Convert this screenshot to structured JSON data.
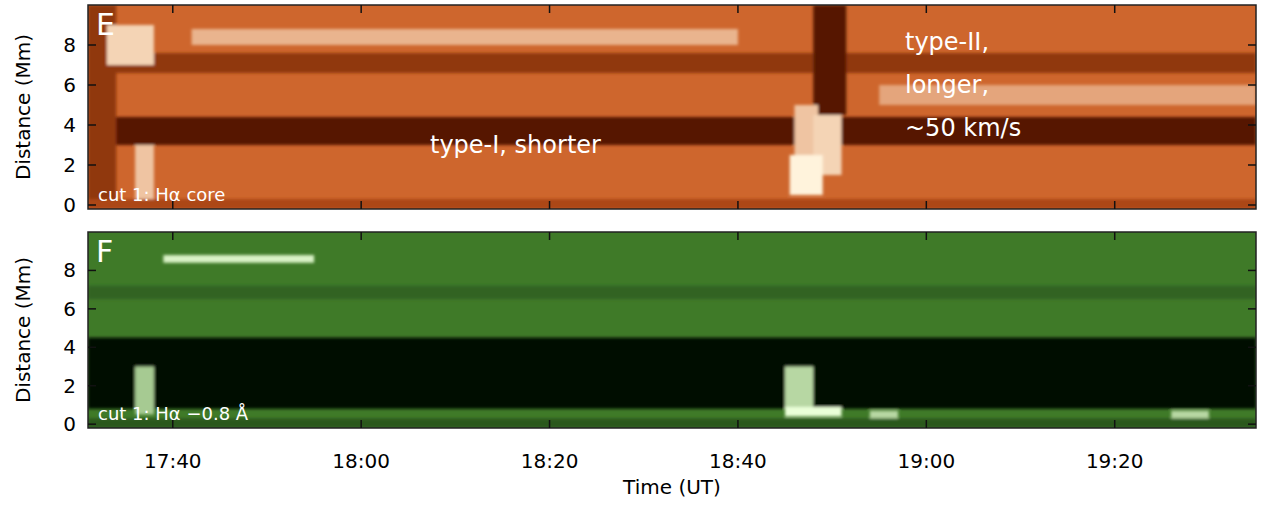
{
  "chart_data": [
    {
      "type": "time-distance",
      "panel": "E",
      "ylabel": "Distance (Mm)",
      "cut_label": "cut 1: Hα core",
      "annotations": [
        "type-I, shorter",
        "type-II, longer, ~50 km/s"
      ],
      "xlim": [
        1051,
        1175
      ],
      "ylim": [
        -0.2,
        10
      ],
      "xticks": [
        {
          "value": 1060,
          "label": "17:40"
        },
        {
          "value": 1080,
          "label": "18:00"
        },
        {
          "value": 1100,
          "label": "18:20"
        },
        {
          "value": 1120,
          "label": "18:40"
        },
        {
          "value": 1140,
          "label": "19:00"
        },
        {
          "value": 1160,
          "label": "19:20"
        }
      ],
      "yticks": [
        0,
        2,
        4,
        6,
        8
      ],
      "tick_labels": "y",
      "colors": [
        "#3a0800",
        "#c9561a",
        "#fff3dc"
      ],
      "background": 0.55,
      "features": [
        {
          "t0": 1051,
          "t1": 1175,
          "d0": 6.6,
          "d1": 7.6,
          "level": 0.3
        },
        {
          "t0": 1051,
          "t1": 1175,
          "d0": 3.0,
          "d1": 4.4,
          "level": 0.1
        },
        {
          "t0": 1062,
          "t1": 1120,
          "d0": 8.0,
          "d1": 8.8,
          "level": 0.8
        },
        {
          "t0": 1135,
          "t1": 1175,
          "d0": 5.0,
          "d1": 6.0,
          "level": 0.75
        },
        {
          "t0": 1051,
          "t1": 1054,
          "d0": 0.0,
          "d1": 10.0,
          "level": 0.3
        },
        {
          "t0": 1053,
          "t1": 1058,
          "d0": 7.0,
          "d1": 9.0,
          "level": 0.9
        },
        {
          "t0": 1056,
          "t1": 1058,
          "d0": 0.2,
          "d1": 3.0,
          "level": 0.85
        },
        {
          "t0": 1051,
          "t1": 1175,
          "d0": -0.2,
          "d1": 0.3,
          "level": 0.4
        },
        {
          "t0": 1128,
          "t1": 1131.5,
          "d0": 4.5,
          "d1": 10.0,
          "level": 0.1
        },
        {
          "t0": 1126,
          "t1": 1128.5,
          "d0": 2.5,
          "d1": 5.0,
          "level": 0.85
        },
        {
          "t0": 1128,
          "t1": 1131,
          "d0": 1.5,
          "d1": 4.5,
          "level": 0.9
        },
        {
          "t0": 1125.5,
          "t1": 1129,
          "d0": 0.5,
          "d1": 2.5,
          "level": 1.0
        }
      ]
    },
    {
      "type": "time-distance",
      "panel": "F",
      "ylabel": "Distance (Mm)",
      "xlabel": "Time (UT)",
      "cut_label": "cut 1: Hα −0.8 Å",
      "xlim": [
        1051,
        1175
      ],
      "ylim": [
        -0.2,
        10
      ],
      "xticks": [
        {
          "value": 1060,
          "label": "17:40"
        },
        {
          "value": 1080,
          "label": "18:00"
        },
        {
          "value": 1100,
          "label": "18:20"
        },
        {
          "value": 1120,
          "label": "18:40"
        },
        {
          "value": 1140,
          "label": "19:00"
        },
        {
          "value": 1160,
          "label": "19:20"
        }
      ],
      "yticks": [
        0,
        2,
        4,
        6,
        8
      ],
      "colors": [
        "#000a00",
        "#3f7a28",
        "#eaffd8"
      ],
      "background": 0.5,
      "features": [
        {
          "t0": 1051,
          "t1": 1175,
          "d0": 6.5,
          "d1": 7.2,
          "level": 0.4
        },
        {
          "t0": 1051,
          "t1": 1175,
          "d0": 0.8,
          "d1": 4.5,
          "level": 0.03
        },
        {
          "t0": 1059,
          "t1": 1075,
          "d0": 8.4,
          "d1": 8.8,
          "level": 0.95
        },
        {
          "t0": 1051,
          "t1": 1175,
          "d0": -0.2,
          "d1": 0.3,
          "level": 0.35
        },
        {
          "t0": 1056,
          "t1": 1058,
          "d0": 0.5,
          "d1": 3.0,
          "level": 0.8
        },
        {
          "t0": 1125,
          "t1": 1128,
          "d0": 0.5,
          "d1": 3.0,
          "level": 0.85
        },
        {
          "t0": 1125,
          "t1": 1131,
          "d0": 0.4,
          "d1": 0.9,
          "level": 1.0
        },
        {
          "t0": 1134,
          "t1": 1137,
          "d0": 0.3,
          "d1": 0.7,
          "level": 0.85
        },
        {
          "t0": 1166,
          "t1": 1170,
          "d0": 0.3,
          "d1": 0.7,
          "level": 0.85
        }
      ]
    }
  ]
}
